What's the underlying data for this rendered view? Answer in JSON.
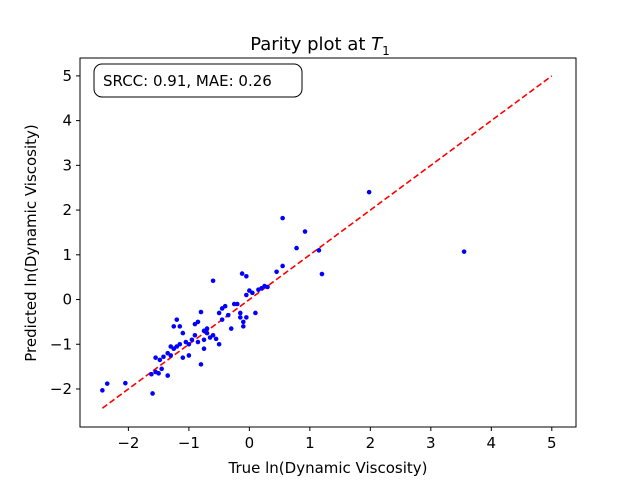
{
  "chart_data": {
    "type": "scatter",
    "title_main": "Parity plot at ",
    "title_var": "T",
    "title_sub": "1",
    "xlabel": "True ln(Dynamic Viscosity)",
    "ylabel": "Predicted ln(Dynamic Viscosity)",
    "xlim": [
      -2.8,
      5.4
    ],
    "ylim": [
      -2.85,
      5.4
    ],
    "xticks": [
      -2,
      -1,
      0,
      1,
      2,
      3,
      4,
      5
    ],
    "yticks": [
      -2,
      -1,
      0,
      1,
      2,
      3,
      4,
      5
    ],
    "xtick_labels": [
      "−2",
      "−1",
      "0",
      "1",
      "2",
      "3",
      "4",
      "5"
    ],
    "ytick_labels": [
      "−2",
      "−1",
      "0",
      "1",
      "2",
      "3",
      "4",
      "5"
    ],
    "annotation": "SRCC: 0.91, MAE:  0.26",
    "grid": false,
    "parity_line": {
      "x": [
        -2.43,
        5.0
      ],
      "y": [
        -2.43,
        5.0
      ],
      "color": "#ff0000",
      "style": "dashed"
    },
    "series": [
      {
        "color": "#0000ff",
        "points": [
          [
            -2.43,
            -2.03
          ],
          [
            -2.35,
            -1.88
          ],
          [
            -2.05,
            -1.87
          ],
          [
            -1.6,
            -2.1
          ],
          [
            -1.62,
            -1.67
          ],
          [
            -1.55,
            -1.62
          ],
          [
            -1.5,
            -1.65
          ],
          [
            -1.45,
            -1.55
          ],
          [
            -1.55,
            -1.3
          ],
          [
            -1.48,
            -1.35
          ],
          [
            -1.42,
            -1.28
          ],
          [
            -1.35,
            -1.7
          ],
          [
            -1.3,
            -1.25
          ],
          [
            -1.35,
            -1.2
          ],
          [
            -1.25,
            -1.1
          ],
          [
            -1.2,
            -1.05
          ],
          [
            -1.15,
            -1.0
          ],
          [
            -1.25,
            -0.6
          ],
          [
            -1.2,
            -0.45
          ],
          [
            -1.15,
            -0.6
          ],
          [
            -1.1,
            -0.75
          ],
          [
            -1.05,
            -0.95
          ],
          [
            -1.0,
            -1.0
          ],
          [
            -0.95,
            -0.9
          ],
          [
            -1.0,
            -1.25
          ],
          [
            -1.1,
            -1.3
          ],
          [
            -0.9,
            -0.55
          ],
          [
            -0.85,
            -0.5
          ],
          [
            -0.8,
            -0.28
          ],
          [
            -0.85,
            -0.95
          ],
          [
            -0.75,
            -0.9
          ],
          [
            -0.75,
            -0.7
          ],
          [
            -0.7,
            -0.75
          ],
          [
            -0.7,
            -0.65
          ],
          [
            -0.65,
            -0.85
          ],
          [
            -0.6,
            -0.8
          ],
          [
            -0.55,
            -0.88
          ],
          [
            -0.5,
            -1.0
          ],
          [
            -0.6,
            0.42
          ],
          [
            -0.8,
            -1.45
          ],
          [
            -0.75,
            -1.1
          ],
          [
            -0.45,
            -0.2
          ],
          [
            -0.4,
            -0.15
          ],
          [
            -0.35,
            -0.35
          ],
          [
            -0.3,
            -0.65
          ],
          [
            -0.25,
            -0.1
          ],
          [
            -0.2,
            -0.1
          ],
          [
            -0.15,
            -0.3
          ],
          [
            -0.1,
            -0.5
          ],
          [
            -0.12,
            0.58
          ],
          [
            -0.05,
            0.52
          ],
          [
            -0.1,
            -0.6
          ],
          [
            -0.05,
            -0.4
          ],
          [
            -0.15,
            -0.4
          ],
          [
            0.0,
            0.2
          ],
          [
            0.05,
            0.15
          ],
          [
            0.1,
            -0.3
          ],
          [
            0.15,
            0.22
          ],
          [
            0.2,
            0.25
          ],
          [
            0.25,
            0.3
          ],
          [
            0.3,
            0.28
          ],
          [
            0.45,
            0.62
          ],
          [
            0.55,
            0.75
          ],
          [
            0.55,
            1.82
          ],
          [
            0.78,
            1.15
          ],
          [
            0.92,
            1.52
          ],
          [
            1.15,
            1.1
          ],
          [
            1.2,
            0.57
          ],
          [
            1.98,
            2.4
          ],
          [
            3.55,
            1.07
          ],
          [
            -0.05,
            0.1
          ],
          [
            -0.5,
            -0.3
          ],
          [
            -0.9,
            -0.8
          ],
          [
            -1.3,
            -1.05
          ],
          [
            -0.45,
            -0.45
          ]
        ]
      }
    ]
  }
}
